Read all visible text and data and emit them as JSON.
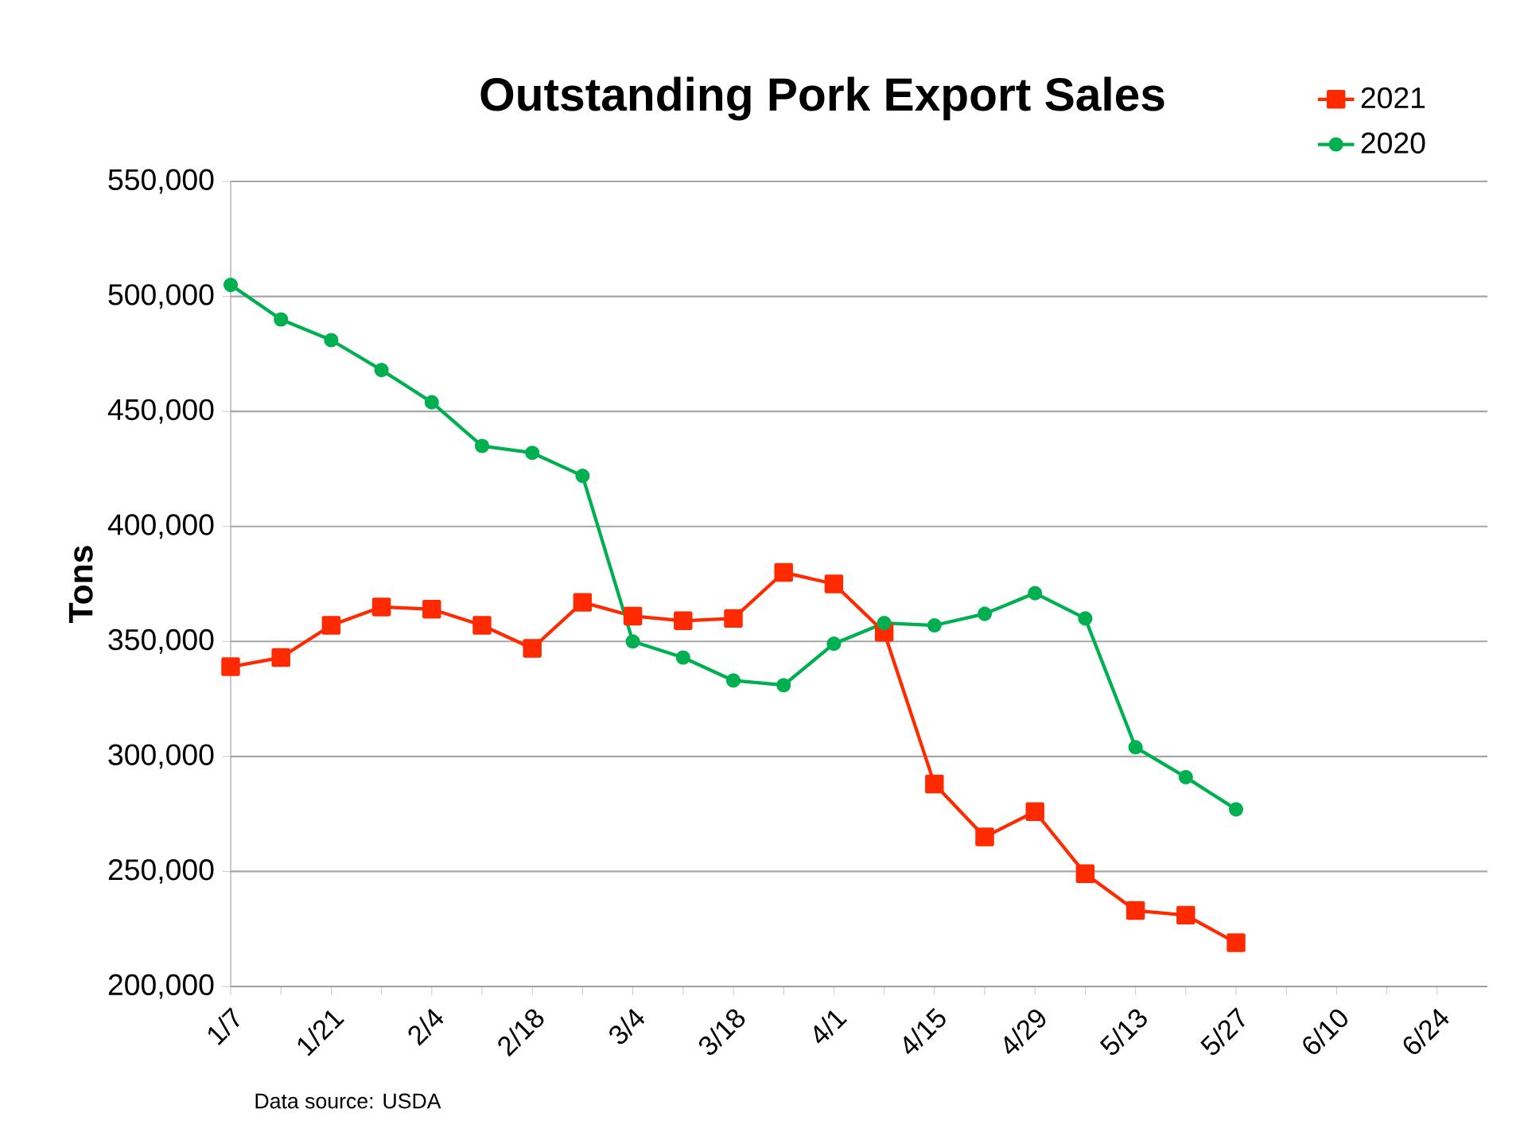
{
  "chart_data": {
    "type": "line",
    "title": "Outstanding Pork Export Sales",
    "ylabel": "Tons",
    "categories": [
      "1/7",
      null,
      "1/21",
      null,
      "2/4",
      null,
      "2/18",
      null,
      "3/4",
      null,
      "3/18",
      null,
      "4/1",
      null,
      "4/15",
      null,
      "4/29",
      null,
      "5/13",
      null,
      "5/27",
      null,
      "6/10",
      null,
      "6/24"
    ],
    "series": [
      {
        "name": "2021",
        "color": "#ff2a00",
        "marker": "square",
        "values": [
          339000,
          343000,
          357000,
          365000,
          364000,
          357000,
          347000,
          367000,
          361000,
          359000,
          360000,
          380000,
          375000,
          354000,
          288000,
          265000,
          276000,
          249000,
          233000,
          231000,
          219000,
          null,
          null,
          null,
          null
        ]
      },
      {
        "name": "2020",
        "color": "#00b050",
        "marker": "circle",
        "values": [
          505000,
          490000,
          481000,
          468000,
          454000,
          435000,
          432000,
          422000,
          350000,
          343000,
          333000,
          331000,
          349000,
          358000,
          357000,
          362000,
          371000,
          360000,
          304000,
          291000,
          277000,
          null,
          null,
          null,
          null
        ]
      }
    ],
    "ylim": [
      200000,
      550000
    ],
    "yticks": [
      {
        "value": 200000,
        "label": "200,000"
      },
      {
        "value": 250000,
        "label": "250,000"
      },
      {
        "value": 300000,
        "label": "300,000"
      },
      {
        "value": 350000,
        "label": "350,000"
      },
      {
        "value": 400000,
        "label": "400,000"
      },
      {
        "value": 450000,
        "label": "450,000"
      },
      {
        "value": 500000,
        "label": "500,000"
      },
      {
        "value": 550000,
        "label": "550,000"
      }
    ],
    "grid": "y",
    "legend": "top right",
    "line_style": "solid",
    "annotations": [
      "Data source: USDA"
    ]
  }
}
